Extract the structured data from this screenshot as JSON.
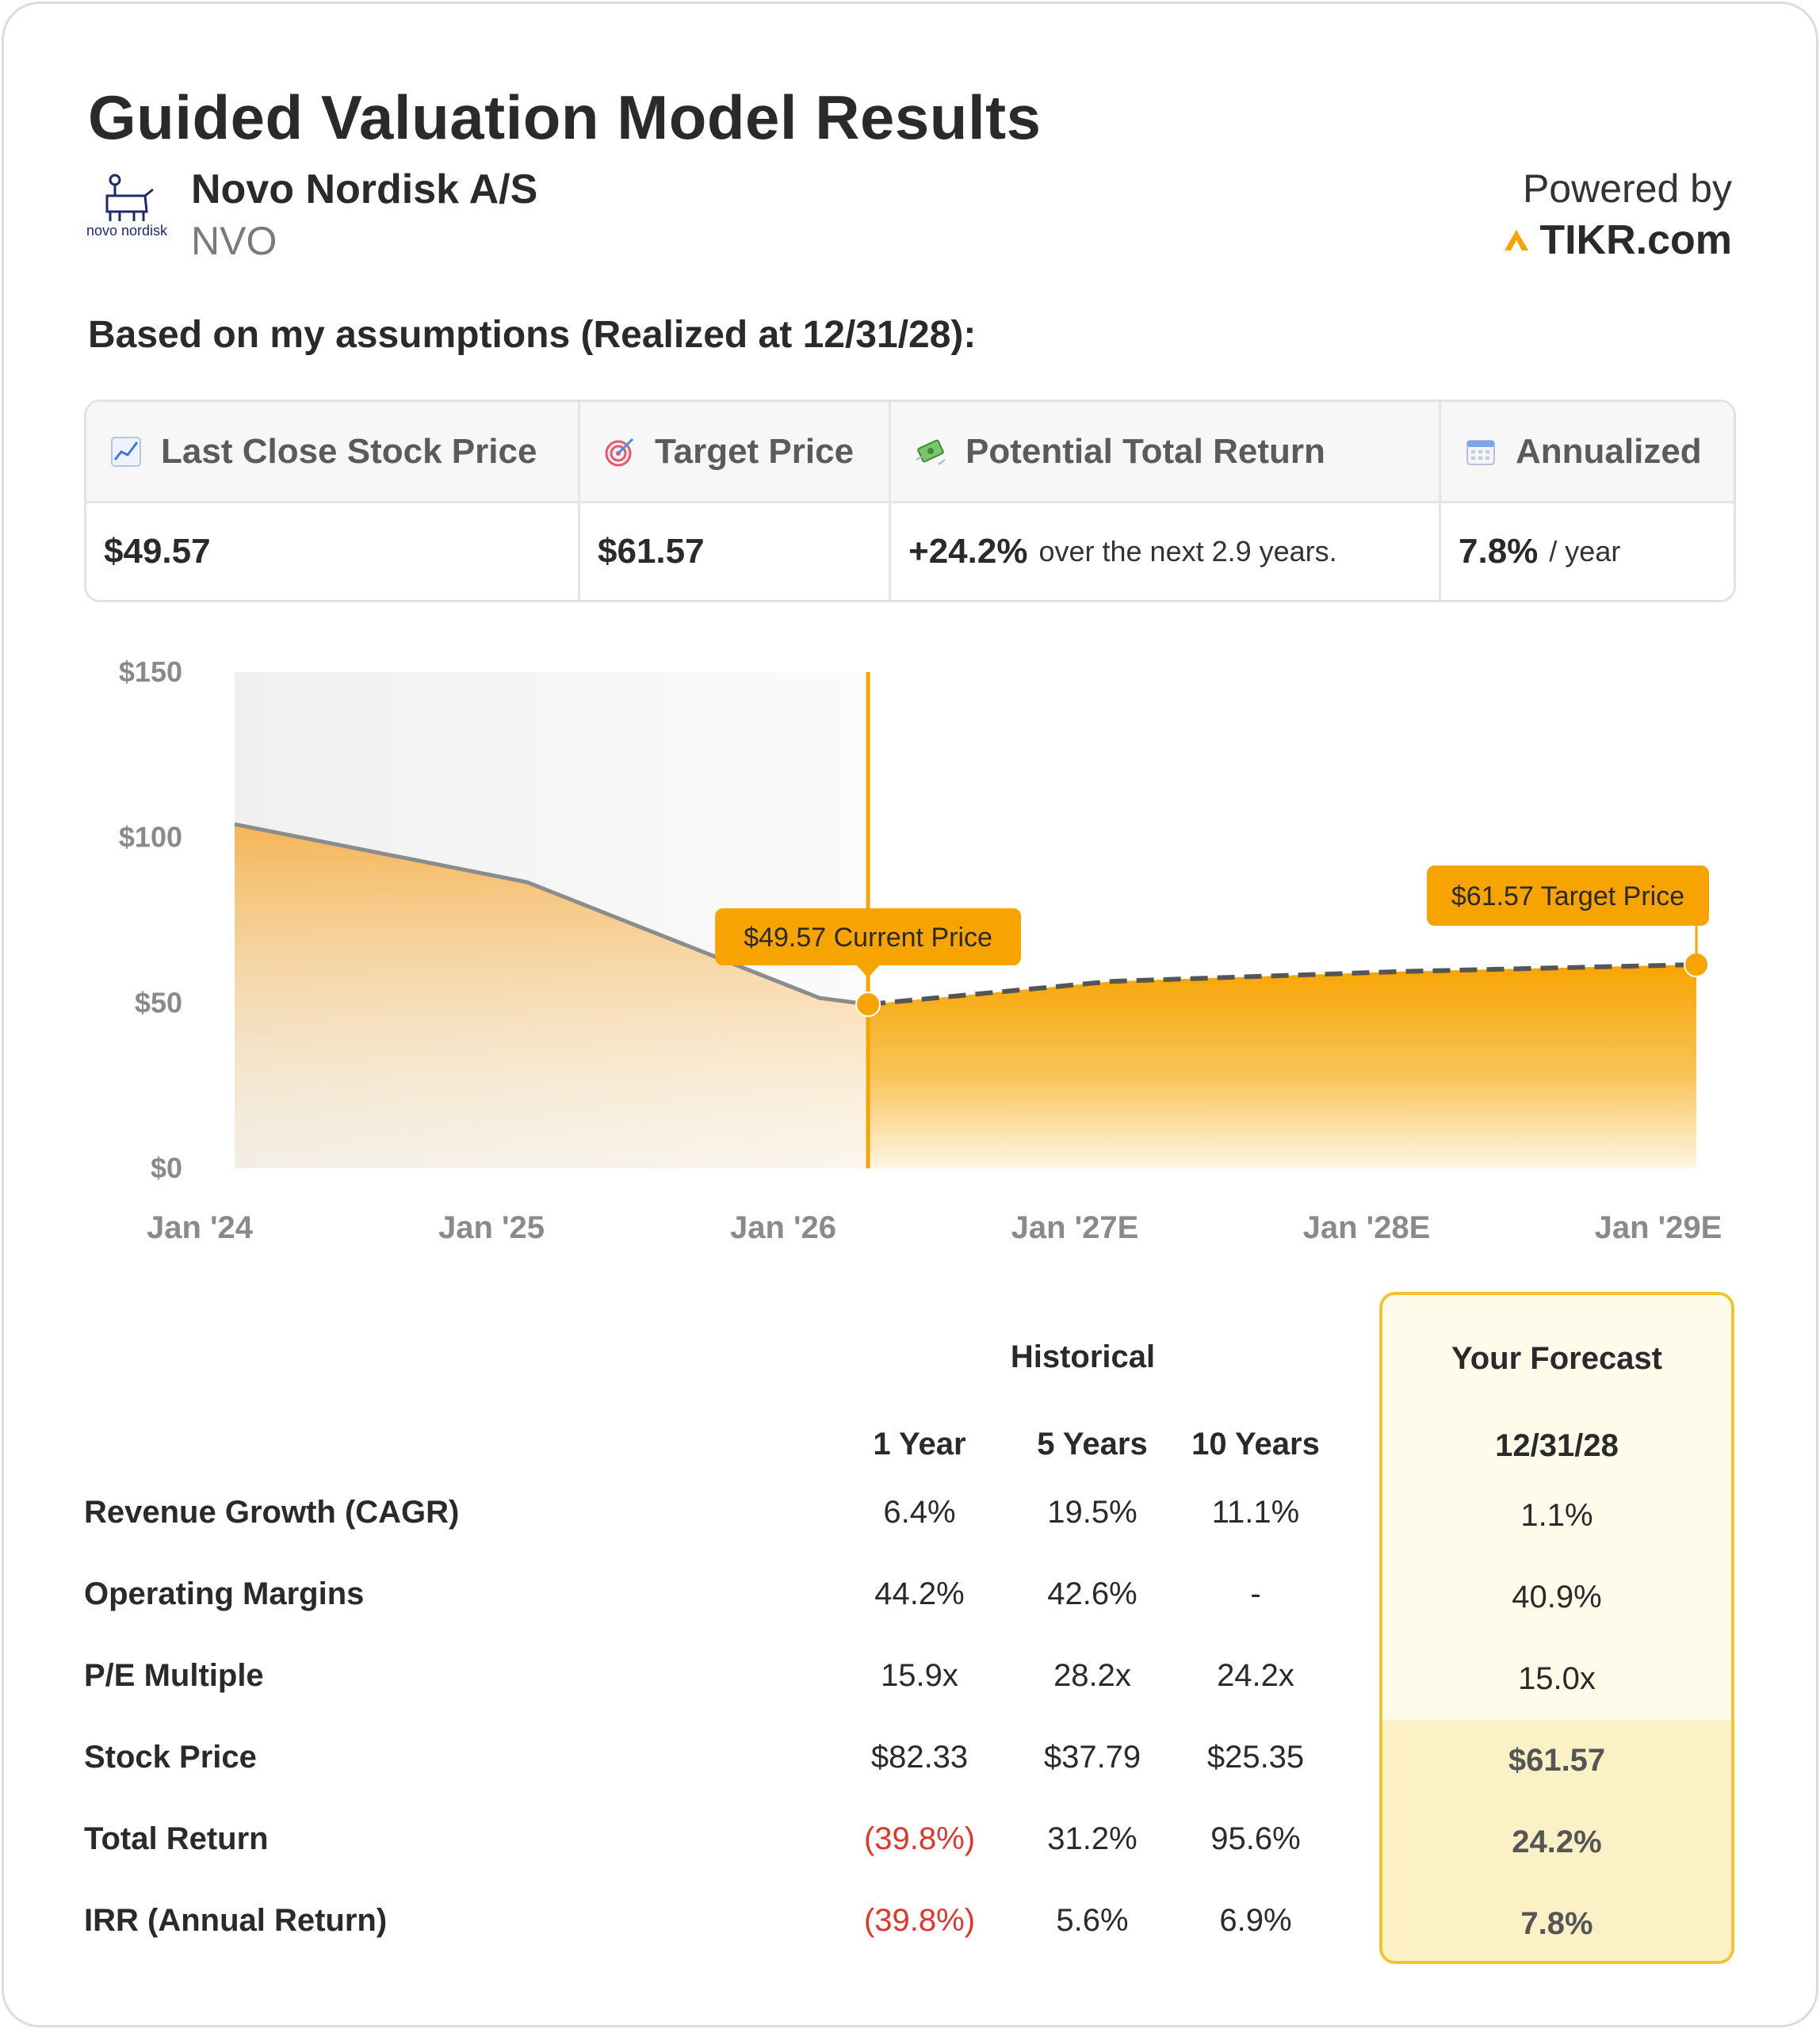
{
  "title": "Guided Valuation Model Results",
  "company": {
    "name": "Novo Nordisk A/S",
    "ticker": "NVO",
    "logo_text": "novo nordisk"
  },
  "powered_by": {
    "label": "Powered by",
    "brand": "TIKR.com"
  },
  "assumptions_heading": "Based on my assumptions (Realized at 12/31/28):",
  "summary": {
    "headers": [
      {
        "icon": "chart-increasing-icon",
        "label": "Last Close Stock Price"
      },
      {
        "icon": "target-icon",
        "label": "Target Price"
      },
      {
        "icon": "money-wings-icon",
        "label": "Potential Total Return"
      },
      {
        "icon": "calendar-icon",
        "label": "Annualized"
      }
    ],
    "last_close": "$49.57",
    "target_price": "$61.57",
    "total_return": "+24.2%",
    "total_return_note": "over the next 2.9 years.",
    "annualized": "7.8%",
    "annualized_note": "/ year"
  },
  "chart_data": {
    "type": "area",
    "y_ticks": [
      "$150",
      "$100",
      "$50",
      "$0"
    ],
    "ylim": [
      0,
      150
    ],
    "x_ticks": [
      "Jan '24",
      "Jan '25",
      "Jan '26",
      "Jan '27E",
      "Jan '28E",
      "Jan '29E"
    ],
    "historical": {
      "x": [
        "2024-01",
        "2025-01",
        "2026-01",
        "2026-03"
      ],
      "y": [
        104,
        86.5,
        51.5,
        49.57
      ]
    },
    "forecast": {
      "x": [
        "2026-03",
        "2027-01",
        "2028-01",
        "2029-01"
      ],
      "y": [
        49.57,
        56.5,
        59.5,
        61.57
      ]
    },
    "current_price_label": "$49.57 Current Price",
    "target_price_label": "$61.57 Target Price",
    "colors": {
      "accent": "#f7a400",
      "history_line": "#8c8c8c",
      "forecast_line": "#555555"
    }
  },
  "metrics": {
    "historical_heading": "Historical",
    "forecast_heading": "Your Forecast",
    "columns": [
      "1 Year",
      "5 Years",
      "10 Years"
    ],
    "forecast_column": "12/31/28",
    "rows": [
      {
        "label": "Revenue Growth (CAGR)",
        "values": [
          "6.4%",
          "19.5%",
          "11.1%"
        ],
        "forecast": "1.1%"
      },
      {
        "label": "Operating Margins",
        "values": [
          "44.2%",
          "42.6%",
          "-"
        ],
        "forecast": "40.9%"
      },
      {
        "label": "P/E Multiple",
        "values": [
          "15.9x",
          "28.2x",
          "24.2x"
        ],
        "forecast": "15.0x"
      },
      {
        "label": "Stock Price",
        "values": [
          "$82.33",
          "$37.79",
          "$25.35"
        ],
        "forecast": "$61.57"
      },
      {
        "label": "Total Return",
        "values": [
          "(39.8%)",
          "31.2%",
          "95.6%"
        ],
        "forecast": "24.2%"
      },
      {
        "label": "IRR (Annual Return)",
        "values": [
          "(39.8%)",
          "5.6%",
          "6.9%"
        ],
        "forecast": "7.8%"
      }
    ],
    "negative_color": "#e0362c"
  }
}
